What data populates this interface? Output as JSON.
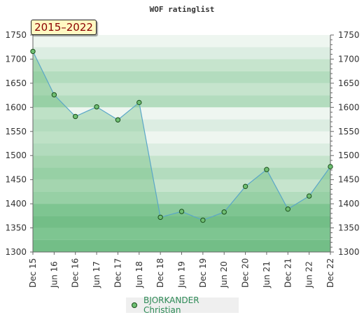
{
  "chart_data": {
    "type": "area",
    "title": "WOF ratinglist",
    "range_label": "2015–2022",
    "x": [
      "Dec 15",
      "Jun 16",
      "Dec 16",
      "Jun 17",
      "Dec 17",
      "Jun 18",
      "Dec 18",
      "Jun 19",
      "Dec 19",
      "Jun 20",
      "Dec 20",
      "Jun 21",
      "Dec 21",
      "Jun 22",
      "Dec 22"
    ],
    "series": [
      {
        "name": "BJORKANDER Christian",
        "values": [
          1716,
          1626,
          1581,
          1601,
          1574,
          1610,
          1372,
          1384,
          1366,
          1383,
          1436,
          1471,
          1389,
          1416,
          1477
        ]
      }
    ],
    "ylim": [
      1300,
      1750
    ],
    "yticks": [
      1300,
      1350,
      1400,
      1450,
      1500,
      1550,
      1600,
      1650,
      1700,
      1750
    ],
    "xlabel": "",
    "ylabel": "",
    "grid": "banded",
    "legend_position": "bottom",
    "colors": {
      "band_light": [
        "#dcede2",
        "#eef6f0"
      ],
      "band_mid": [
        "#b3dcbe",
        "#c6e4cd"
      ],
      "band_dark": [
        "#7cc190",
        "#8ccb9e"
      ],
      "area_fill": "rgba(100,185,120,0.35)",
      "line": "#5aa6c8",
      "marker_fill": "#6fbf73",
      "marker_stroke": "#1a4d1a",
      "legend_text": "#2e8b57",
      "range_text": "#8b0000"
    }
  }
}
